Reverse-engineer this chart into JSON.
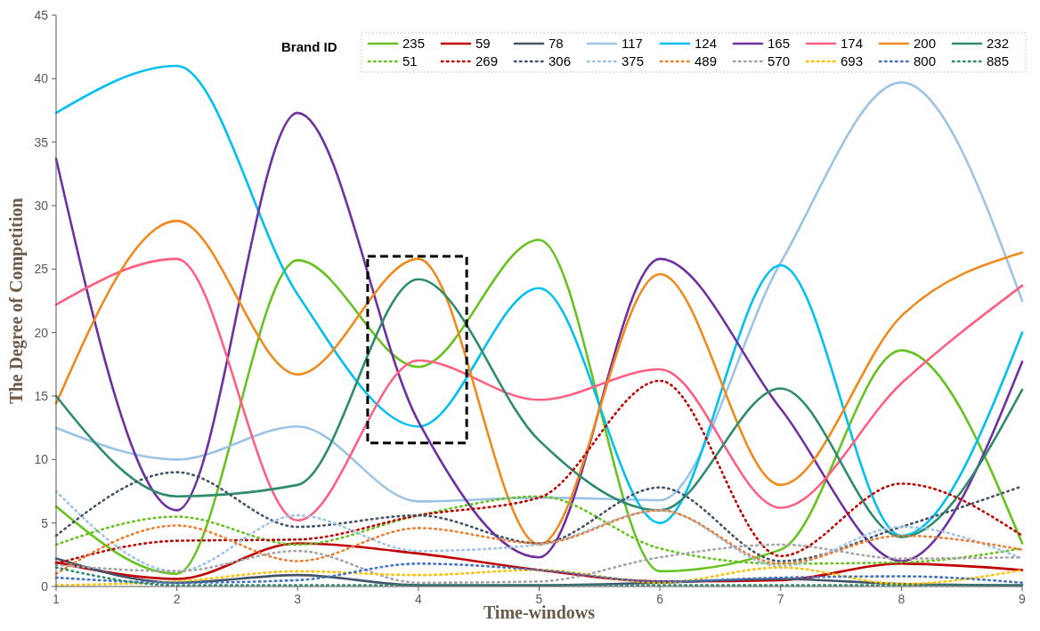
{
  "chart_data": {
    "type": "line",
    "xlabel": "Time-windows",
    "ylabel": "The Degree of Competition",
    "legend_title": "Brand ID",
    "x": [
      1,
      2,
      3,
      4,
      5,
      6,
      7,
      8,
      9
    ],
    "xlim": [
      1,
      9
    ],
    "xticks": [
      1,
      2,
      3,
      4,
      5,
      6,
      7,
      8,
      9
    ],
    "ylim": [
      0,
      45
    ],
    "yticks": [
      0,
      5,
      10,
      15,
      20,
      25,
      30,
      35,
      40,
      45
    ],
    "grid": false,
    "legend": "top right",
    "marker": "none",
    "series": [
      {
        "name": "235",
        "color": "#66c21e",
        "line_style": "solid",
        "values": [
          6.3,
          1.0,
          25.7,
          17.3,
          27.3,
          1.2,
          2.9,
          18.6,
          3.4
        ]
      },
      {
        "name": "59",
        "color": "#c00000",
        "line_style": "solid",
        "values": [
          1.9,
          0.6,
          3.4,
          2.6,
          1.3,
          0.4,
          0.5,
          1.8,
          1.3
        ]
      },
      {
        "name": "78",
        "color": "#44546a",
        "line_style": "solid",
        "values": [
          2.2,
          0.3,
          0.9,
          0.1,
          0.1,
          0.3,
          0.6,
          0.2,
          0.1
        ]
      },
      {
        "name": "117",
        "color": "#9dc3e6",
        "line_style": "solid",
        "values": [
          12.5,
          10,
          12.6,
          6.7,
          7,
          6.8,
          25.5,
          39.7,
          22.5
        ]
      },
      {
        "name": "124",
        "color": "#00c0f0",
        "line_style": "solid",
        "values": [
          37.3,
          41,
          23,
          12.6,
          23.5,
          5.0,
          25.3,
          4.0,
          20
        ]
      },
      {
        "name": "165",
        "color": "#7030a0",
        "line_style": "solid",
        "values": [
          33.7,
          6,
          37.3,
          13,
          2.3,
          25.8,
          14,
          2.0,
          17.7
        ]
      },
      {
        "name": "174",
        "color": "#ff6082",
        "line_style": "solid",
        "values": [
          22.2,
          25.8,
          5.2,
          17.8,
          14.7,
          17.1,
          6.2,
          16,
          23.7
        ]
      },
      {
        "name": "200",
        "color": "#f08a1c",
        "line_style": "solid",
        "values": [
          14.4,
          28.8,
          16.7,
          25.8,
          3.3,
          24.6,
          8.0,
          21.3,
          26.3
        ]
      },
      {
        "name": "232",
        "color": "#2e8b6e",
        "line_style": "solid",
        "values": [
          15,
          7.1,
          8.0,
          24.2,
          11.5,
          6.0,
          15.6,
          3.9,
          15.5
        ]
      },
      {
        "name": "51",
        "color": "#66c21e",
        "line_style": "dotted",
        "values": [
          3.3,
          5.5,
          3.3,
          5.6,
          7.1,
          3.0,
          1.8,
          1.9,
          3.0
        ]
      },
      {
        "name": "269",
        "color": "#c00000",
        "line_style": "dotted",
        "values": [
          1.8,
          3.6,
          3.7,
          5.6,
          7,
          16.2,
          2.4,
          8.1,
          4.0
        ]
      },
      {
        "name": "306",
        "color": "#44546a",
        "line_style": "dotted",
        "values": [
          4,
          9,
          4.7,
          5.6,
          3.4,
          7.8,
          2.0,
          4.7,
          7.9
        ]
      },
      {
        "name": "375",
        "color": "#9dc3e6",
        "line_style": "dotted",
        "values": [
          7.5,
          1.2,
          5.6,
          2.8,
          3.3,
          6.0,
          1.6,
          4.7,
          2.2
        ]
      },
      {
        "name": "489",
        "color": "#ed7d31",
        "line_style": "dotted",
        "values": [
          1.0,
          4.8,
          2.0,
          4.6,
          3.4,
          6.0,
          1.8,
          4.0,
          2.9
        ]
      },
      {
        "name": "570",
        "color": "#a5a5a5",
        "line_style": "dotted",
        "values": [
          1.7,
          1.2,
          2.8,
          0.3,
          0.4,
          2.3,
          3.3,
          2.2,
          2.3
        ]
      },
      {
        "name": "693",
        "color": "#ffc000",
        "line_style": "dotted",
        "values": [
          0.1,
          0.4,
          1.2,
          0.9,
          1.3,
          0.3,
          1.5,
          0.2,
          1.3
        ]
      },
      {
        "name": "800",
        "color": "#4472c4",
        "line_style": "dotted",
        "values": [
          0.7,
          0.3,
          0.5,
          1.8,
          1.3,
          0.4,
          0.7,
          0.8,
          0.3
        ]
      },
      {
        "name": "885",
        "color": "#2e8b6e",
        "line_style": "dotted",
        "values": [
          1.5,
          0.1,
          0.1,
          0.1,
          0.1,
          0.1,
          0.1,
          0.1,
          0.1
        ]
      }
    ]
  }
}
